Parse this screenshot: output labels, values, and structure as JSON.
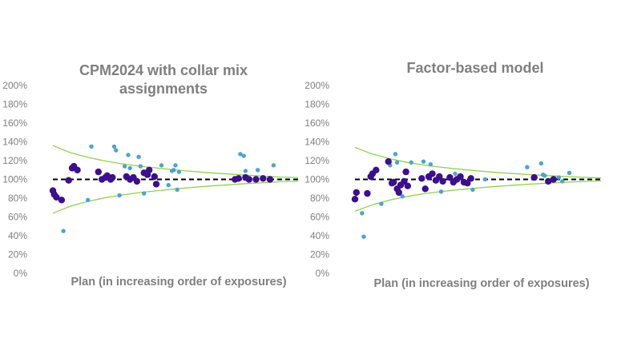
{
  "colors": {
    "band": "#92d050",
    "reference_line": "#000000",
    "series_dark": "#3c0f8c",
    "series_light": "#4ba3d3",
    "text": "#7f7f7f"
  },
  "chart_data": [
    {
      "type": "scatter",
      "title_lines": [
        "CPM2024 with collar mix",
        "assignments"
      ],
      "xlabel": "Plan (in increasing order of exposures)",
      "ylabel": "",
      "ylim": [
        0,
        2
      ],
      "yticks": [
        "0%",
        "20%",
        "40%",
        "60%",
        "80%",
        "100%",
        "120%",
        "140%",
        "160%",
        "180%",
        "200%"
      ],
      "xlim": [
        0,
        70
      ],
      "reference_line": 1.0,
      "band": {
        "upper": [
          [
            0,
            1.36
          ],
          [
            5,
            1.285
          ],
          [
            10,
            1.235
          ],
          [
            15,
            1.195
          ],
          [
            20,
            1.165
          ],
          [
            25,
            1.14
          ],
          [
            30,
            1.12
          ],
          [
            35,
            1.1
          ],
          [
            40,
            1.085
          ],
          [
            45,
            1.07
          ],
          [
            50,
            1.058
          ],
          [
            55,
            1.045
          ],
          [
            60,
            1.035
          ],
          [
            65,
            1.025
          ],
          [
            70,
            1.02
          ]
        ],
        "lower": [
          [
            0,
            0.64
          ],
          [
            5,
            0.715
          ],
          [
            10,
            0.765
          ],
          [
            15,
            0.805
          ],
          [
            20,
            0.835
          ],
          [
            25,
            0.86
          ],
          [
            30,
            0.88
          ],
          [
            35,
            0.9
          ],
          [
            40,
            0.915
          ],
          [
            45,
            0.93
          ],
          [
            50,
            0.942
          ],
          [
            55,
            0.955
          ],
          [
            60,
            0.965
          ],
          [
            65,
            0.975
          ],
          [
            70,
            0.98
          ]
        ]
      },
      "series": [
        {
          "points": [
            [
              0,
              0.88
            ],
            [
              0.4,
              0.84
            ],
            [
              1,
              0.81
            ],
            [
              2.5,
              0.78
            ],
            [
              4.5,
              0.99
            ],
            [
              5.5,
              1.12
            ],
            [
              6,
              1.14
            ],
            [
              7,
              1.1
            ],
            [
              13,
              1.08
            ],
            [
              14,
              1.0
            ],
            [
              15,
              1.02
            ],
            [
              15.5,
              1.04
            ],
            [
              16.5,
              1.0
            ],
            [
              17,
              1.02
            ],
            [
              21,
              1.03
            ],
            [
              22,
              1.0
            ],
            [
              23,
              1.02
            ],
            [
              24,
              0.98
            ],
            [
              26,
              1.07
            ],
            [
              27,
              1.05
            ],
            [
              27.5,
              1.1
            ],
            [
              29,
              1.03
            ],
            [
              29.5,
              0.95
            ],
            [
              52,
              1.0
            ],
            [
              53,
              1.01
            ],
            [
              55,
              1.02
            ],
            [
              56,
              1.0
            ],
            [
              58,
              1.0
            ],
            [
              60,
              1.01
            ],
            [
              62,
              1.0
            ]
          ]
        },
        {
          "points": [
            [
              3,
              0.45
            ],
            [
              10,
              0.78
            ],
            [
              11,
              1.35
            ],
            [
              17.5,
              1.35
            ],
            [
              18,
              1.31
            ],
            [
              19,
              0.83
            ],
            [
              20.5,
              1.14
            ],
            [
              21.5,
              1.26
            ],
            [
              22,
              1.12
            ],
            [
              24.5,
              1.24
            ],
            [
              25,
              1.14
            ],
            [
              26,
              0.85
            ],
            [
              31,
              1.15
            ],
            [
              33,
              0.94
            ],
            [
              34,
              1.09
            ],
            [
              34.5,
              1.1
            ],
            [
              35,
              1.15
            ],
            [
              35.5,
              0.89
            ],
            [
              36,
              1.08
            ],
            [
              53.5,
              1.27
            ],
            [
              54.5,
              1.25
            ],
            [
              55,
              1.09
            ],
            [
              58.5,
              1.1
            ],
            [
              63,
              1.15
            ]
          ]
        }
      ]
    },
    {
      "type": "scatter",
      "title_lines": [
        "Factor-based model"
      ],
      "xlabel": "Plan (in increasing order of exposures)",
      "ylabel": "",
      "ylim": [
        0,
        2
      ],
      "yticks": [
        "0%",
        "20%",
        "40%",
        "60%",
        "80%",
        "100%",
        "120%",
        "140%",
        "160%",
        "180%",
        "200%"
      ],
      "xlim": [
        0,
        70
      ],
      "reference_line": 1.0,
      "band": {
        "upper": [
          [
            0,
            1.34
          ],
          [
            5,
            1.27
          ],
          [
            10,
            1.22
          ],
          [
            15,
            1.18
          ],
          [
            20,
            1.15
          ],
          [
            25,
            1.128
          ],
          [
            30,
            1.108
          ],
          [
            35,
            1.09
          ],
          [
            40,
            1.075
          ],
          [
            45,
            1.062
          ],
          [
            50,
            1.05
          ],
          [
            55,
            1.04
          ],
          [
            60,
            1.03
          ],
          [
            65,
            1.022
          ],
          [
            70,
            1.016
          ]
        ],
        "lower": [
          [
            0,
            0.66
          ],
          [
            5,
            0.73
          ],
          [
            10,
            0.78
          ],
          [
            15,
            0.82
          ],
          [
            20,
            0.85
          ],
          [
            25,
            0.872
          ],
          [
            30,
            0.892
          ],
          [
            35,
            0.91
          ],
          [
            40,
            0.925
          ],
          [
            45,
            0.938
          ],
          [
            50,
            0.95
          ],
          [
            55,
            0.96
          ],
          [
            60,
            0.97
          ],
          [
            65,
            0.978
          ],
          [
            70,
            0.984
          ]
        ]
      },
      "series": [
        {
          "points": [
            [
              0,
              0.79
            ],
            [
              0.4,
              0.86
            ],
            [
              3.5,
              0.85
            ],
            [
              4.5,
              1.03
            ],
            [
              5,
              1.06
            ],
            [
              6,
              1.1
            ],
            [
              9.5,
              1.19
            ],
            [
              10.5,
              0.96
            ],
            [
              11,
              0.97
            ],
            [
              12,
              0.9
            ],
            [
              12.5,
              0.86
            ],
            [
              13,
              0.94
            ],
            [
              14,
              0.98
            ],
            [
              14.5,
              1.08
            ],
            [
              15,
              0.93
            ],
            [
              19,
              1.01
            ],
            [
              20,
              0.9
            ],
            [
              21,
              1.03
            ],
            [
              22,
              1.06
            ],
            [
              23,
              0.99
            ],
            [
              24,
              1.03
            ],
            [
              25,
              0.98
            ],
            [
              27,
              1.02
            ],
            [
              28,
              0.97
            ],
            [
              29,
              1.0
            ],
            [
              30,
              1.03
            ],
            [
              31,
              0.97
            ],
            [
              32,
              0.96
            ],
            [
              33,
              1.01
            ],
            [
              51,
              1.02
            ],
            [
              55,
              0.98
            ],
            [
              56.5,
              1.0
            ]
          ]
        },
        {
          "points": [
            [
              2,
              0.64
            ],
            [
              2.5,
              0.39
            ],
            [
              7.5,
              0.74
            ],
            [
              10,
              1.15
            ],
            [
              11.5,
              1.27
            ],
            [
              12,
              1.18
            ],
            [
              13.5,
              0.82
            ],
            [
              16,
              1.18
            ],
            [
              19.5,
              1.19
            ],
            [
              21.5,
              1.16
            ],
            [
              24.5,
              0.87
            ],
            [
              28.5,
              1.06
            ],
            [
              33.5,
              0.89
            ],
            [
              37,
              1.0
            ],
            [
              49,
              1.13
            ],
            [
              53,
              1.17
            ],
            [
              53.5,
              1.05
            ],
            [
              54,
              1.04
            ],
            [
              58,
              1.02
            ],
            [
              59,
              0.98
            ],
            [
              61,
              1.07
            ]
          ]
        }
      ]
    }
  ]
}
